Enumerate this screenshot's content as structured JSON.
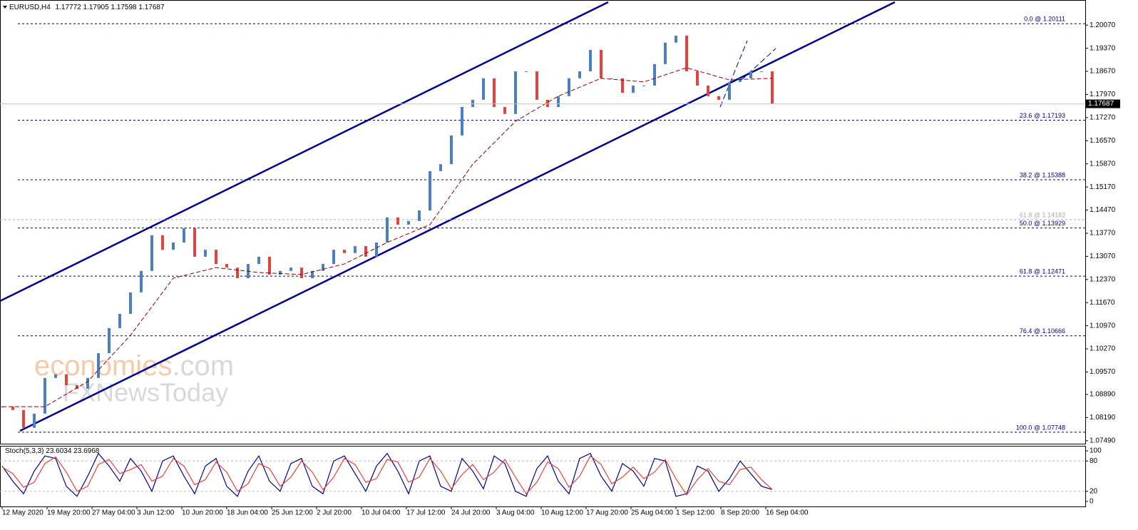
{
  "header": {
    "symbol": "EURUSD,H4",
    "ohlc": [
      1.17772,
      1.17905,
      1.17598,
      1.17687
    ]
  },
  "watermark": [
    "economies",
    ".com",
    "FXNewsToday"
  ],
  "time_labels": [
    "12 May 2020",
    "19 May 20:00",
    "27 May 04:00",
    "3 Jun 12:00",
    "10 Jun 20:00",
    "18 Jun 04:00",
    "25 Jun 12:00",
    "2 Jul 20:00",
    "10 Jul 04:00",
    "17 Jul 12:00",
    "24 Jul 20:00",
    "3 Aug 04:00",
    "10 Aug 12:00",
    "17 Aug 20:00",
    "25 Aug 04:00",
    "1 Sep 12:00",
    "8 Sep 20:00",
    "16 Sep 04:00"
  ],
  "chart_data": [
    {
      "type": "candlestick",
      "ylim": [
        1.074,
        1.2083
      ],
      "yticks": [
        {
          "value": 1.2007,
          "label": "1.20070"
        },
        {
          "value": 1.1937,
          "label": "1.19370"
        },
        {
          "value": 1.1867,
          "label": "1.18670"
        },
        {
          "value": 1.1797,
          "label": "1.17970"
        },
        {
          "value": 1.1727,
          "label": "1.17270"
        },
        {
          "value": 1.1657,
          "label": "1.16570"
        },
        {
          "value": 1.1587,
          "label": "1.15870"
        },
        {
          "value": 1.1517,
          "label": "1.15170"
        },
        {
          "value": 1.1447,
          "label": "1.14470"
        },
        {
          "value": 1.1377,
          "label": "1.13770"
        },
        {
          "value": 1.1307,
          "label": "1.13070"
        },
        {
          "value": 1.1237,
          "label": "1.12370"
        },
        {
          "value": 1.1167,
          "label": "1.11670"
        },
        {
          "value": 1.1097,
          "label": "1.10970"
        },
        {
          "value": 1.1027,
          "label": "1.10270"
        },
        {
          "value": 1.0957,
          "label": "1.09570"
        },
        {
          "value": 1.0889,
          "label": "1.08890"
        },
        {
          "value": 1.0819,
          "label": "1.08190"
        },
        {
          "value": 1.0749,
          "label": "1.07490"
        }
      ],
      "last_price": 1.17687,
      "levels": [
        {
          "value": 1.20111,
          "label": "0.0 @ 1.20111",
          "color": "#000080"
        },
        {
          "value": 1.17193,
          "label": "23.6 @ 1.17193",
          "color": "#000080"
        },
        {
          "value": 1.15388,
          "label": "38.2 @ 1.15388",
          "color": "#000080"
        },
        {
          "value": 1.14182,
          "label": "61.8 @ 1.14182",
          "color": "#aaaaaa"
        },
        {
          "value": 1.13929,
          "label": "50.0 @ 1.13929",
          "color": "#000080"
        },
        {
          "value": 1.12471,
          "label": "61.8 @ 1.12471",
          "color": "#000080"
        },
        {
          "value": 1.10666,
          "label": "76.4 @ 1.10666",
          "color": "#000080"
        },
        {
          "value": 1.07748,
          "label": "100.0 @ 1.07748",
          "color": "#000080"
        }
      ],
      "up_color": "#4a7fc1",
      "down_color": "#e8403a",
      "series": [
        {
          "values": [
            1.0852,
            1.0842,
            1.0788,
            1.0831,
            1.0939,
            1.095,
            1.0917,
            1.0906,
            1.0939,
            1.1014,
            1.109,
            1.1133,
            1.1198,
            1.1263,
            1.1371,
            1.1327,
            1.1349,
            1.1392,
            1.1306,
            1.1327,
            1.1284,
            1.1273,
            1.1241,
            1.1284,
            1.1306,
            1.1252,
            1.1263,
            1.1273,
            1.1241,
            1.1263,
            1.1284,
            1.1327,
            1.1317,
            1.1338,
            1.1306,
            1.1349,
            1.1425,
            1.1403,
            1.1414,
            1.1446,
            1.1565,
            1.1586,
            1.1673,
            1.1759,
            1.1781,
            1.1846,
            1.1759,
            1.1738,
            1.1867,
            1.1867,
            1.1781,
            1.1759,
            1.1792,
            1.1846,
            1.1867,
            1.1932,
            1.1846,
            1.1846,
            1.1802,
            1.1824,
            1.1824,
            1.1889,
            1.1954,
            1.1975,
            1.1867,
            1.1824,
            1.1792,
            1.1781,
            1.1835,
            1.1846,
            1.1867,
            1.1867,
            1.17687
          ]
        },
        {
          "color": "#8b0000",
          "values": [
            1.0852,
            1.0852,
            1.0928,
            1.1068,
            1.1241,
            1.1273,
            1.1258,
            1.1252,
            1.1284,
            1.1349,
            1.1403,
            1.1586,
            1.1716,
            1.1792,
            1.1846,
            1.1835,
            1.1878,
            1.1841,
            1.1846
          ]
        }
      ]
    },
    {
      "type": "line",
      "title": "Stoch(5,3,3)",
      "ylim": [
        -10,
        110
      ],
      "yticks": [
        100,
        80,
        20,
        0
      ],
      "levels": [
        80,
        20
      ],
      "series": [
        {
          "color": "#00008b",
          "values": [
            70,
            40,
            15,
            60,
            90,
            85,
            30,
            10,
            50,
            95,
            70,
            40,
            85,
            60,
            20,
            80,
            90,
            50,
            15,
            70,
            85,
            30,
            10,
            60,
            90,
            40,
            20,
            75,
            85,
            30,
            15,
            80,
            90,
            55,
            20,
            70,
            95,
            60,
            15,
            80,
            90,
            30,
            20,
            85,
            60,
            25,
            90,
            75,
            20,
            10,
            65,
            90,
            40,
            15,
            85,
            95,
            50,
            20,
            75,
            60,
            30,
            85,
            80,
            10,
            15,
            70,
            60,
            20,
            45,
            80,
            55,
            30,
            23.6034
          ]
        },
        {
          "color": "#e8403a",
          "values": [
            68,
            55,
            28,
            38,
            75,
            88,
            58,
            20,
            30,
            73,
            83,
            55,
            63,
            73,
            40,
            50,
            85,
            70,
            33,
            43,
            78,
            58,
            20,
            35,
            75,
            65,
            30,
            48,
            80,
            58,
            23,
            48,
            85,
            73,
            38,
            45,
            83,
            78,
            38,
            48,
            85,
            60,
            25,
            53,
            73,
            43,
            58,
            83,
            48,
            15,
            38,
            78,
            65,
            28,
            50,
            90,
            73,
            35,
            48,
            68,
            45,
            58,
            83,
            45,
            13,
            43,
            65,
            40,
            33,
            63,
            68,
            43,
            23.6968
          ]
        }
      ]
    }
  ]
}
